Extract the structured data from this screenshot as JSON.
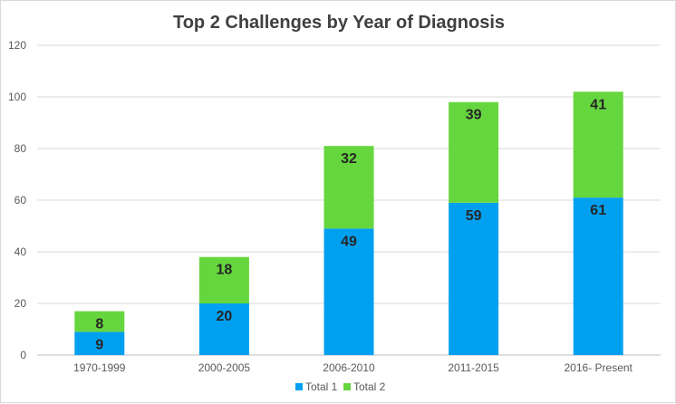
{
  "chart_data": {
    "type": "bar",
    "stacked": true,
    "title": "Top 2 Challenges by Year of Diagnosis",
    "categories": [
      "1970-1999",
      "2000-2005",
      "2006-2010",
      "2011-2015",
      "2016- Present"
    ],
    "series": [
      {
        "name": "Total 1",
        "values": [
          9,
          20,
          49,
          59,
          61
        ],
        "color": "#00a0f0"
      },
      {
        "name": "Total 2",
        "values": [
          8,
          18,
          32,
          39,
          41
        ],
        "color": "#66d63e"
      }
    ],
    "ylim": [
      0,
      120
    ],
    "yticks": [
      0,
      20,
      40,
      60,
      80,
      100,
      120
    ],
    "grid": true,
    "legend": "bottom"
  }
}
